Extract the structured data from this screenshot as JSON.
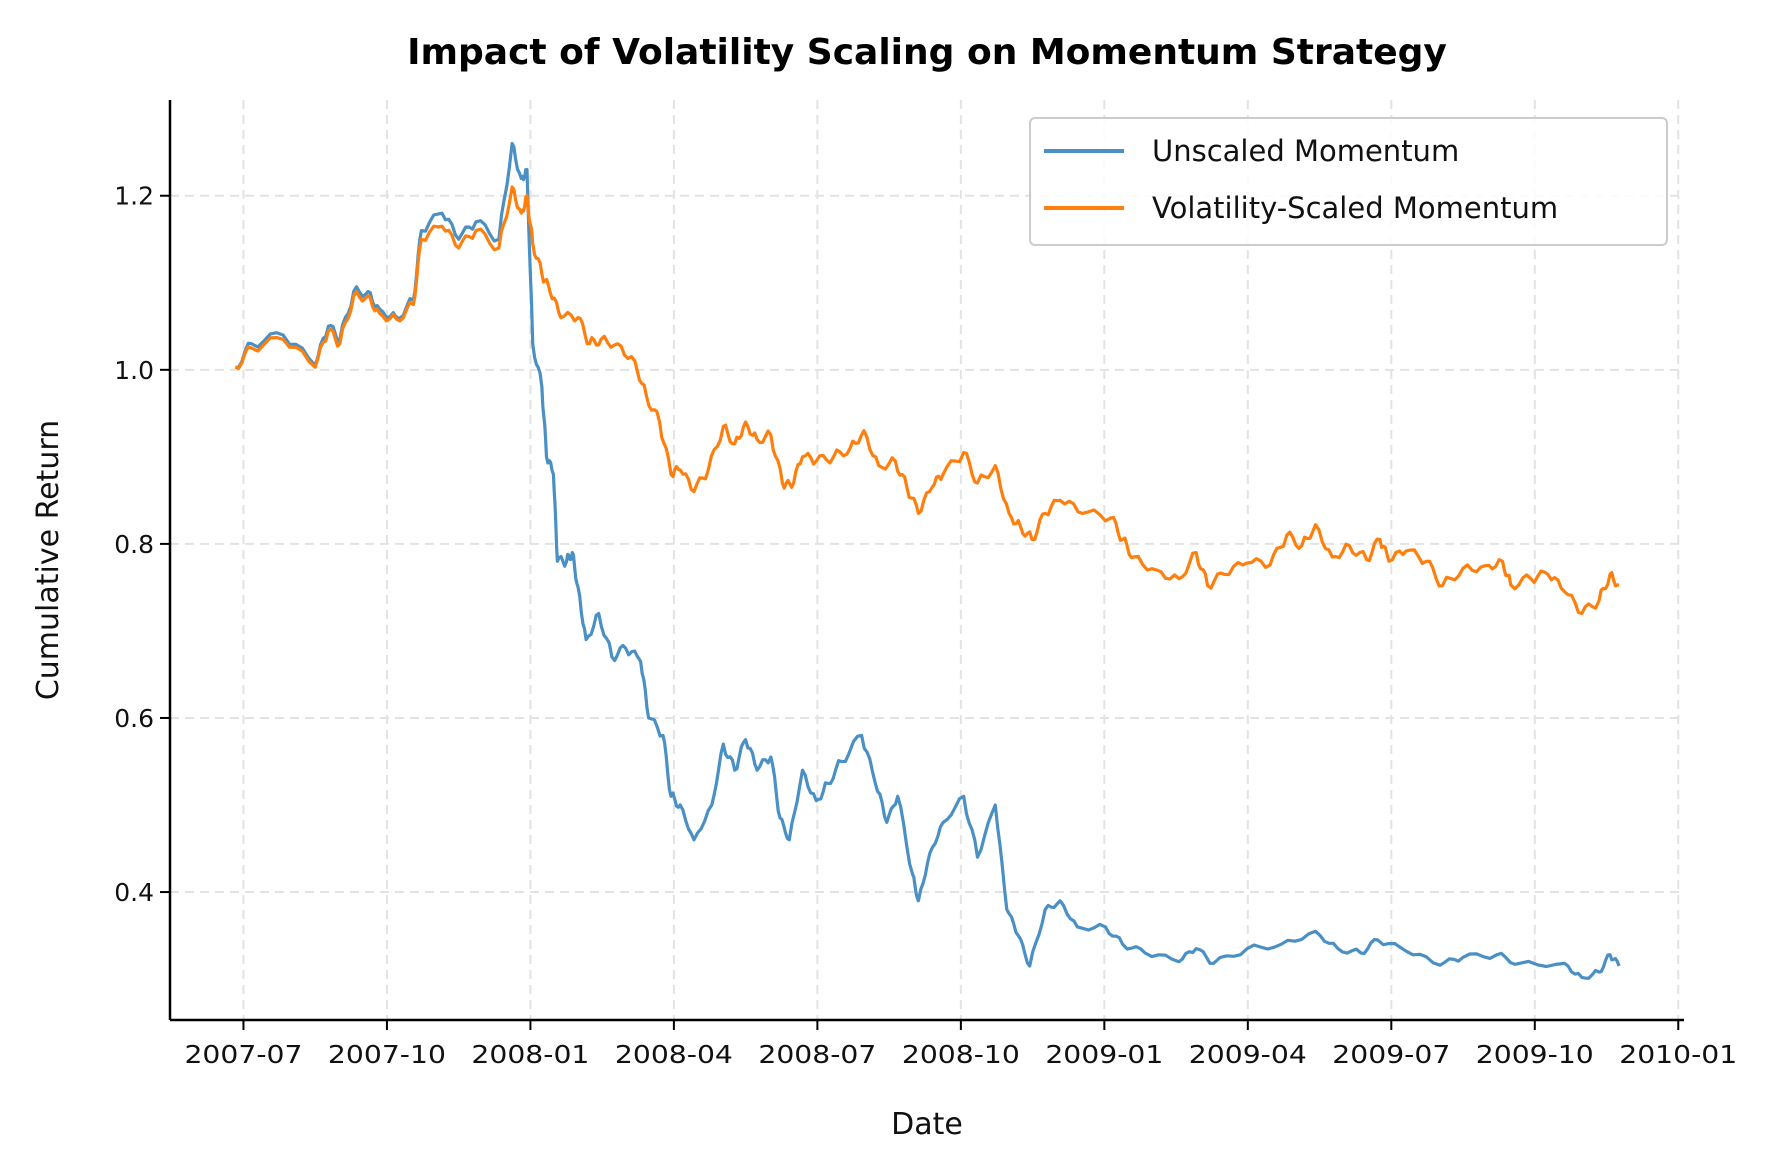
{
  "chart_data": {
    "type": "line",
    "title": "Impact of Volatility Scaling on Momentum Strategy",
    "xlabel": "Date",
    "ylabel": "Cumulative Return",
    "x_units": "decimal year",
    "xlim": [
      2007.372,
      2010.01
    ],
    "ylim": [
      0.253,
      1.31
    ],
    "grid": true,
    "legend_position": "top-right",
    "xticks": [
      {
        "value": 2007.5,
        "label": "2007-07"
      },
      {
        "value": 2007.75,
        "label": "2007-10"
      },
      {
        "value": 2008.0,
        "label": "2008-01"
      },
      {
        "value": 2008.25,
        "label": "2008-04"
      },
      {
        "value": 2008.5,
        "label": "2008-07"
      },
      {
        "value": 2008.75,
        "label": "2008-10"
      },
      {
        "value": 2009.0,
        "label": "2009-01"
      },
      {
        "value": 2009.25,
        "label": "2009-04"
      },
      {
        "value": 2009.5,
        "label": "2009-07"
      },
      {
        "value": 2009.75,
        "label": "2009-10"
      },
      {
        "value": 2010.0,
        "label": "2010-01"
      }
    ],
    "yticks": [
      {
        "value": 0.4,
        "label": "0.4"
      },
      {
        "value": 0.6,
        "label": "0.6"
      },
      {
        "value": 0.8,
        "label": "0.8"
      },
      {
        "value": 1.0,
        "label": "1.0"
      },
      {
        "value": 1.2,
        "label": "1.2"
      }
    ],
    "series": [
      {
        "name": "Unscaled Momentum",
        "color": "#4a90c4",
        "points": [
          [
            2007.486,
            1.003
          ],
          [
            2007.514,
            1.03
          ],
          [
            2007.569,
            1.04
          ],
          [
            2007.625,
            1.005
          ],
          [
            2007.648,
            1.05
          ],
          [
            2007.668,
            1.035
          ],
          [
            2007.692,
            1.09
          ],
          [
            2007.717,
            1.09
          ],
          [
            2007.737,
            1.07
          ],
          [
            2007.767,
            1.06
          ],
          [
            2007.796,
            1.08
          ],
          [
            2007.81,
            1.16
          ],
          [
            2007.846,
            1.18
          ],
          [
            2007.875,
            1.15
          ],
          [
            2007.905,
            1.17
          ],
          [
            2007.945,
            1.15
          ],
          [
            2007.968,
            1.26
          ],
          [
            2007.984,
            1.22
          ],
          [
            2007.994,
            1.23
          ],
          [
            2008.004,
            1.03
          ],
          [
            2008.02,
            0.98
          ],
          [
            2008.028,
            0.9
          ],
          [
            2008.04,
            0.88
          ],
          [
            2008.047,
            0.78
          ],
          [
            2008.063,
            0.78
          ],
          [
            2008.073,
            0.79
          ],
          [
            2008.083,
            0.75
          ],
          [
            2008.097,
            0.69
          ],
          [
            2008.119,
            0.72
          ],
          [
            2008.142,
            0.67
          ],
          [
            2008.166,
            0.68
          ],
          [
            2008.192,
            0.665
          ],
          [
            2008.206,
            0.6
          ],
          [
            2008.231,
            0.58
          ],
          [
            2008.245,
            0.51
          ],
          [
            2008.261,
            0.5
          ],
          [
            2008.285,
            0.46
          ],
          [
            2008.316,
            0.5
          ],
          [
            2008.336,
            0.57
          ],
          [
            2008.356,
            0.54
          ],
          [
            2008.375,
            0.575
          ],
          [
            2008.395,
            0.54
          ],
          [
            2008.419,
            0.555
          ],
          [
            2008.435,
            0.485
          ],
          [
            2008.451,
            0.46
          ],
          [
            2008.474,
            0.54
          ],
          [
            2008.498,
            0.505
          ],
          [
            2008.518,
            0.525
          ],
          [
            2008.542,
            0.55
          ],
          [
            2008.577,
            0.58
          ],
          [
            2008.601,
            0.525
          ],
          [
            2008.621,
            0.48
          ],
          [
            2008.64,
            0.51
          ],
          [
            2008.666,
            0.42
          ],
          [
            2008.676,
            0.39
          ],
          [
            2008.696,
            0.445
          ],
          [
            2008.719,
            0.48
          ],
          [
            2008.755,
            0.51
          ],
          [
            2008.779,
            0.44
          ],
          [
            2008.81,
            0.5
          ],
          [
            2008.83,
            0.38
          ],
          [
            2008.85,
            0.35
          ],
          [
            2008.87,
            0.315
          ],
          [
            2008.897,
            0.38
          ],
          [
            2008.923,
            0.39
          ],
          [
            2008.953,
            0.36
          ],
          [
            2009.002,
            0.36
          ],
          [
            2009.032,
            0.34
          ],
          [
            2009.071,
            0.33
          ],
          [
            2009.13,
            0.32
          ],
          [
            2009.16,
            0.335
          ],
          [
            2009.19,
            0.318
          ],
          [
            2009.249,
            0.335
          ],
          [
            2009.308,
            0.34
          ],
          [
            2009.368,
            0.355
          ],
          [
            2009.407,
            0.335
          ],
          [
            2009.447,
            0.33
          ],
          [
            2009.476,
            0.345
          ],
          [
            2009.526,
            0.332
          ],
          [
            2009.585,
            0.316
          ],
          [
            2009.625,
            0.325
          ],
          [
            2009.684,
            0.328
          ],
          [
            2009.723,
            0.318
          ],
          [
            2009.802,
            0.318
          ],
          [
            2009.832,
            0.302
          ],
          [
            2009.862,
            0.308
          ],
          [
            2009.881,
            0.328
          ],
          [
            2009.897,
            0.315
          ]
        ]
      },
      {
        "name": "Volatility-Scaled Momentum",
        "color": "#ff7f0e",
        "points": [
          [
            2007.486,
            1.003
          ],
          [
            2007.514,
            1.025
          ],
          [
            2007.569,
            1.035
          ],
          [
            2007.625,
            1.003
          ],
          [
            2007.648,
            1.045
          ],
          [
            2007.668,
            1.03
          ],
          [
            2007.692,
            1.085
          ],
          [
            2007.717,
            1.085
          ],
          [
            2007.737,
            1.065
          ],
          [
            2007.767,
            1.058
          ],
          [
            2007.796,
            1.075
          ],
          [
            2007.81,
            1.15
          ],
          [
            2007.846,
            1.165
          ],
          [
            2007.875,
            1.14
          ],
          [
            2007.905,
            1.16
          ],
          [
            2007.945,
            1.14
          ],
          [
            2007.968,
            1.21
          ],
          [
            2007.984,
            1.18
          ],
          [
            2007.994,
            1.2
          ],
          [
            2008.004,
            1.145
          ],
          [
            2008.02,
            1.11
          ],
          [
            2008.034,
            1.09
          ],
          [
            2008.053,
            1.06
          ],
          [
            2008.083,
            1.06
          ],
          [
            2008.103,
            1.03
          ],
          [
            2008.123,
            1.035
          ],
          [
            2008.152,
            1.03
          ],
          [
            2008.182,
            1.01
          ],
          [
            2008.202,
            0.97
          ],
          [
            2008.225,
            0.94
          ],
          [
            2008.245,
            0.88
          ],
          [
            2008.261,
            0.885
          ],
          [
            2008.285,
            0.86
          ],
          [
            2008.31,
            0.885
          ],
          [
            2008.336,
            0.935
          ],
          [
            2008.356,
            0.915
          ],
          [
            2008.375,
            0.94
          ],
          [
            2008.395,
            0.92
          ],
          [
            2008.419,
            0.925
          ],
          [
            2008.439,
            0.87
          ],
          [
            2008.455,
            0.865
          ],
          [
            2008.474,
            0.9
          ],
          [
            2008.498,
            0.895
          ],
          [
            2008.528,
            0.9
          ],
          [
            2008.557,
            0.91
          ],
          [
            2008.581,
            0.93
          ],
          [
            2008.607,
            0.89
          ],
          [
            2008.636,
            0.895
          ],
          [
            2008.656,
            0.865
          ],
          [
            2008.676,
            0.835
          ],
          [
            2008.7,
            0.865
          ],
          [
            2008.719,
            0.88
          ],
          [
            2008.755,
            0.905
          ],
          [
            2008.779,
            0.87
          ],
          [
            2008.81,
            0.89
          ],
          [
            2008.834,
            0.835
          ],
          [
            2008.854,
            0.82
          ],
          [
            2008.874,
            0.805
          ],
          [
            2008.897,
            0.835
          ],
          [
            2008.923,
            0.85
          ],
          [
            2008.962,
            0.835
          ],
          [
            2009.012,
            0.83
          ],
          [
            2009.032,
            0.805
          ],
          [
            2009.051,
            0.785
          ],
          [
            2009.091,
            0.77
          ],
          [
            2009.13,
            0.76
          ],
          [
            2009.16,
            0.79
          ],
          [
            2009.18,
            0.752
          ],
          [
            2009.209,
            0.765
          ],
          [
            2009.249,
            0.778
          ],
          [
            2009.289,
            0.776
          ],
          [
            2009.318,
            0.81
          ],
          [
            2009.344,
            0.798
          ],
          [
            2009.368,
            0.822
          ],
          [
            2009.397,
            0.785
          ],
          [
            2009.427,
            0.798
          ],
          [
            2009.457,
            0.782
          ],
          [
            2009.48,
            0.805
          ],
          [
            2009.496,
            0.78
          ],
          [
            2009.526,
            0.792
          ],
          [
            2009.561,
            0.78
          ],
          [
            2009.589,
            0.752
          ],
          [
            2009.625,
            0.772
          ],
          [
            2009.664,
            0.775
          ],
          [
            2009.694,
            0.78
          ],
          [
            2009.708,
            0.753
          ],
          [
            2009.743,
            0.76
          ],
          [
            2009.773,
            0.765
          ],
          [
            2009.802,
            0.745
          ],
          [
            2009.832,
            0.72
          ],
          [
            2009.862,
            0.735
          ],
          [
            2009.881,
            0.765
          ],
          [
            2009.897,
            0.753
          ]
        ]
      }
    ]
  }
}
